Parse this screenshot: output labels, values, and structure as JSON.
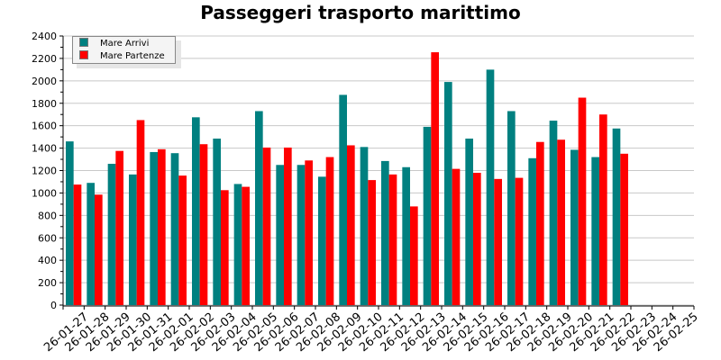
{
  "chart_data": {
    "type": "bar",
    "title": "Passeggeri trasporto marittimo",
    "xlabel": "",
    "ylabel": "",
    "ylim": [
      0,
      2400
    ],
    "yticks": [
      0,
      200,
      400,
      600,
      800,
      1000,
      1200,
      1400,
      1600,
      1800,
      2000,
      2200,
      2400
    ],
    "grid": true,
    "legend_position": "top-left",
    "categories": [
      "26-01-27",
      "26-01-28",
      "26-01-29",
      "26-01-30",
      "26-01-31",
      "26-02-01",
      "26-02-02",
      "26-02-03",
      "26-02-04",
      "26-02-05",
      "26-02-06",
      "26-02-07",
      "26-02-08",
      "26-02-09",
      "26-02-10",
      "26-02-11",
      "26-02-12",
      "26-02-13",
      "26-02-14",
      "26-02-15",
      "26-02-16",
      "26-02-17",
      "26-02-18",
      "26-02-19",
      "26-02-20",
      "26-02-21",
      "26-02-22",
      "26-02-23",
      "26-02-24",
      "26-02-25"
    ],
    "series": [
      {
        "name": "Mare Arrivi",
        "color": "#008080",
        "values": [
          1460,
          1090,
          1260,
          1165,
          1365,
          1355,
          1675,
          1485,
          1080,
          1730,
          1250,
          1250,
          1145,
          1875,
          1410,
          1285,
          1230,
          1590,
          1990,
          1485,
          2100,
          1730,
          1310,
          1645,
          1385,
          1320,
          1575,
          null,
          null,
          null
        ]
      },
      {
        "name": "Mare Partenze",
        "color": "#ff0000",
        "values": [
          1075,
          985,
          1375,
          1650,
          1390,
          1155,
          1435,
          1025,
          1055,
          1405,
          1405,
          1290,
          1320,
          1425,
          1115,
          1165,
          880,
          2255,
          1215,
          1180,
          1125,
          1135,
          1455,
          1475,
          1850,
          1700,
          1350,
          null,
          null,
          null
        ]
      }
    ]
  }
}
